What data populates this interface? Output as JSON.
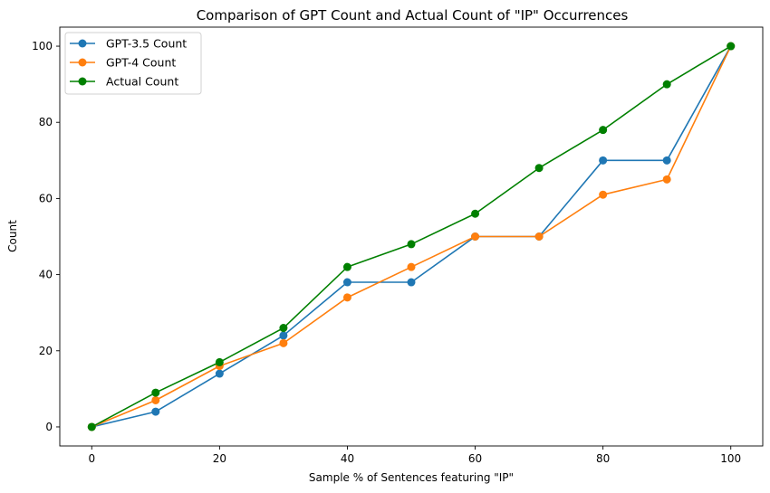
{
  "chart_data": {
    "type": "line",
    "title": "Comparison of GPT Count and Actual Count of \"IP\" Occurrences",
    "xlabel": "Sample % of Sentences featuring \"IP\"",
    "ylabel": "Count",
    "x": [
      0,
      10,
      20,
      30,
      40,
      50,
      60,
      70,
      80,
      90,
      100
    ],
    "xlim": [
      -5,
      105
    ],
    "ylim": [
      -5,
      105
    ],
    "xticks": [
      0,
      20,
      40,
      60,
      80,
      100
    ],
    "yticks": [
      0,
      20,
      40,
      60,
      80,
      100
    ],
    "grid": false,
    "legend_position": "top-left",
    "series": [
      {
        "name": "GPT-3.5 Count",
        "color": "#1f77b4",
        "values": [
          0,
          4,
          14,
          24,
          38,
          38,
          50,
          50,
          70,
          70,
          100
        ]
      },
      {
        "name": "GPT-4 Count",
        "color": "#ff7f0e",
        "values": [
          0,
          7,
          16,
          22,
          34,
          42,
          50,
          50,
          61,
          65,
          100
        ]
      },
      {
        "name": "Actual Count",
        "color": "#008000",
        "values": [
          0,
          9,
          17,
          26,
          42,
          48,
          56,
          68,
          78,
          90,
          100
        ]
      }
    ]
  }
}
